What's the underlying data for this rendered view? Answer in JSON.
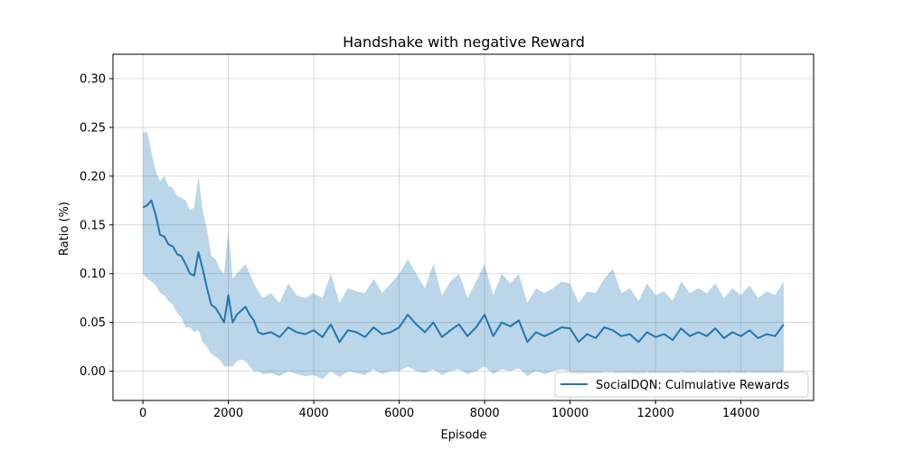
{
  "chart_data": {
    "type": "line",
    "title": "Handshake with negative Reward",
    "xlabel": "Episode",
    "ylabel": "Ratio (%)",
    "xlim": [
      -700,
      15700
    ],
    "ylim": [
      -0.03,
      0.325
    ],
    "xticks": [
      0,
      2000,
      4000,
      6000,
      8000,
      10000,
      12000,
      14000
    ],
    "yticks": [
      0.0,
      0.05,
      0.1,
      0.15,
      0.2,
      0.25,
      0.3
    ],
    "xtick_labels": [
      "0",
      "2000",
      "4000",
      "6000",
      "8000",
      "10000",
      "12000",
      "14000"
    ],
    "ytick_labels": [
      "0.00",
      "0.05",
      "0.10",
      "0.15",
      "0.20",
      "0.25",
      "0.30"
    ],
    "grid": true,
    "legend_position": "lower right",
    "colors": {
      "line": "#1f77b4",
      "band": "#1f77b4"
    },
    "series": [
      {
        "name": "SocialDQN: Culmulative Rewards",
        "x": [
          0,
          100,
          200,
          300,
          400,
          500,
          600,
          700,
          800,
          900,
          1000,
          1100,
          1200,
          1300,
          1400,
          1500,
          1600,
          1700,
          1800,
          1900,
          2000,
          2100,
          2200,
          2300,
          2400,
          2500,
          2600,
          2700,
          2800,
          3000,
          3200,
          3400,
          3600,
          3800,
          4000,
          4200,
          4400,
          4600,
          4800,
          5000,
          5200,
          5400,
          5600,
          5800,
          6000,
          6200,
          6400,
          6600,
          6800,
          7000,
          7200,
          7400,
          7600,
          7800,
          8000,
          8200,
          8400,
          8600,
          8800,
          9000,
          9200,
          9400,
          9600,
          9800,
          10000,
          10200,
          10400,
          10600,
          10800,
          11000,
          11200,
          11400,
          11600,
          11800,
          12000,
          12200,
          12400,
          12600,
          12800,
          13000,
          13200,
          13400,
          13600,
          13800,
          14000,
          14200,
          14400,
          14600,
          14800,
          15000
        ],
        "y": [
          0.168,
          0.17,
          0.175,
          0.16,
          0.14,
          0.138,
          0.13,
          0.128,
          0.12,
          0.118,
          0.11,
          0.1,
          0.098,
          0.122,
          0.105,
          0.085,
          0.068,
          0.065,
          0.058,
          0.05,
          0.078,
          0.05,
          0.058,
          0.062,
          0.066,
          0.058,
          0.052,
          0.04,
          0.038,
          0.04,
          0.035,
          0.045,
          0.04,
          0.038,
          0.042,
          0.035,
          0.048,
          0.03,
          0.042,
          0.04,
          0.035,
          0.045,
          0.038,
          0.04,
          0.045,
          0.058,
          0.048,
          0.04,
          0.05,
          0.035,
          0.042,
          0.048,
          0.036,
          0.045,
          0.058,
          0.036,
          0.05,
          0.046,
          0.052,
          0.03,
          0.04,
          0.036,
          0.04,
          0.045,
          0.044,
          0.03,
          0.038,
          0.034,
          0.045,
          0.042,
          0.036,
          0.038,
          0.03,
          0.04,
          0.035,
          0.038,
          0.032,
          0.044,
          0.036,
          0.04,
          0.036,
          0.044,
          0.034,
          0.04,
          0.036,
          0.042,
          0.034,
          0.038,
          0.036,
          0.048
        ],
        "y_lower": [
          0.1,
          0.095,
          0.092,
          0.088,
          0.08,
          0.078,
          0.072,
          0.068,
          0.06,
          0.055,
          0.045,
          0.045,
          0.04,
          0.042,
          0.03,
          0.025,
          0.018,
          0.015,
          0.012,
          0.005,
          0.005,
          0.005,
          0.01,
          0.012,
          0.01,
          0.005,
          0.0,
          0.0,
          -0.003,
          -0.002,
          -0.005,
          0.0,
          -0.003,
          -0.005,
          -0.004,
          -0.008,
          0.0,
          -0.006,
          0.0,
          -0.002,
          -0.004,
          0.002,
          -0.003,
          0.0,
          0.0,
          0.005,
          0.0,
          -0.002,
          0.002,
          -0.004,
          0.0,
          0.002,
          -0.003,
          0.0,
          0.005,
          -0.003,
          0.002,
          0.0,
          0.003,
          -0.005,
          0.0,
          -0.003,
          0.0,
          0.002,
          0.0,
          -0.005,
          -0.002,
          -0.003,
          0.0,
          0.0,
          -0.003,
          -0.002,
          -0.005,
          0.0,
          -0.003,
          -0.002,
          -0.004,
          0.0,
          -0.002,
          0.0,
          -0.003,
          0.0,
          -0.003,
          0.0,
          -0.002,
          0.0,
          -0.003,
          -0.002,
          -0.002,
          0.0
        ],
        "y_upper": [
          0.245,
          0.245,
          0.225,
          0.205,
          0.195,
          0.2,
          0.19,
          0.188,
          0.18,
          0.178,
          0.175,
          0.165,
          0.168,
          0.2,
          0.165,
          0.145,
          0.118,
          0.115,
          0.105,
          0.1,
          0.145,
          0.095,
          0.1,
          0.105,
          0.11,
          0.1,
          0.09,
          0.082,
          0.075,
          0.08,
          0.07,
          0.09,
          0.078,
          0.075,
          0.08,
          0.075,
          0.1,
          0.07,
          0.085,
          0.082,
          0.08,
          0.095,
          0.08,
          0.09,
          0.1,
          0.115,
          0.1,
          0.085,
          0.11,
          0.078,
          0.092,
          0.1,
          0.075,
          0.092,
          0.11,
          0.078,
          0.1,
          0.09,
          0.1,
          0.07,
          0.085,
          0.08,
          0.085,
          0.092,
          0.09,
          0.07,
          0.082,
          0.08,
          0.095,
          0.105,
          0.08,
          0.085,
          0.072,
          0.09,
          0.078,
          0.082,
          0.072,
          0.092,
          0.08,
          0.085,
          0.08,
          0.09,
          0.075,
          0.085,
          0.078,
          0.088,
          0.075,
          0.082,
          0.078,
          0.092
        ]
      }
    ]
  }
}
